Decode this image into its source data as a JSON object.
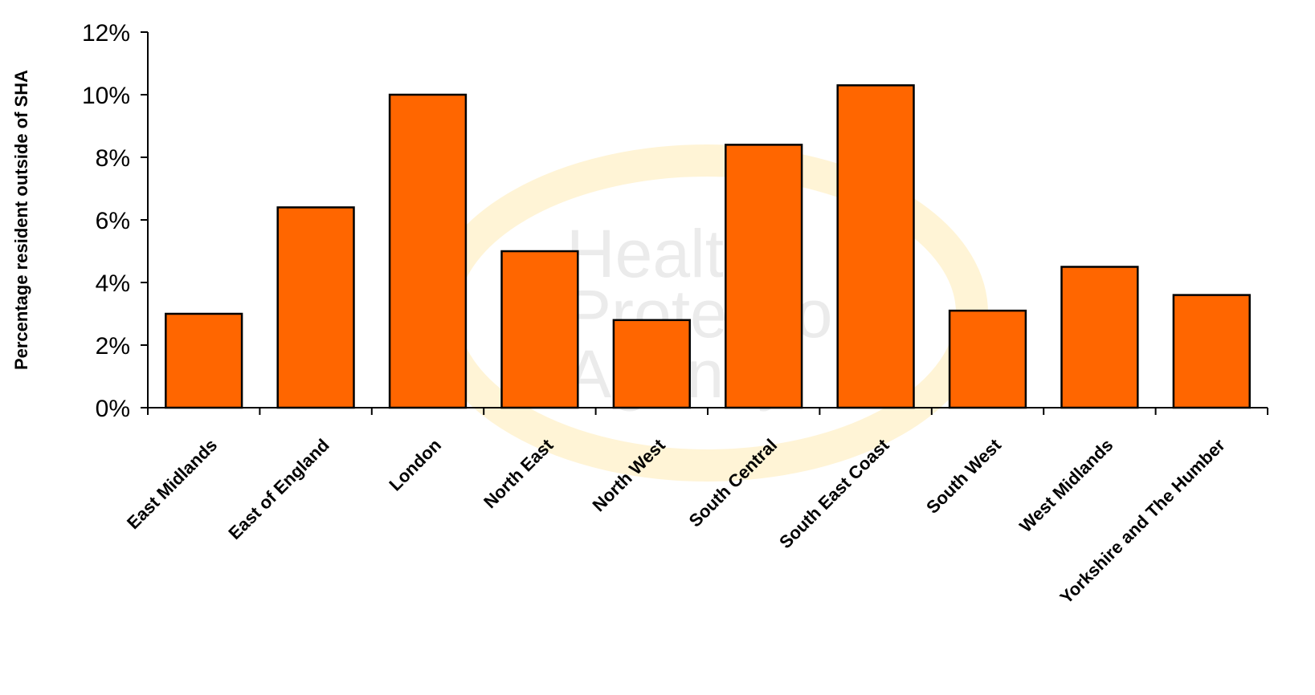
{
  "watermark": {
    "lines": [
      "Health",
      "Protection",
      "Agency"
    ]
  },
  "colors": {
    "bar_fill": "#FF6600",
    "bar_stroke": "#000000",
    "watermark_ring": "#FFD36B"
  },
  "chart_data": {
    "type": "bar",
    "title": "",
    "xlabel": "",
    "ylabel": "Percentage  resident outside of SHA",
    "categories": [
      "East Midlands",
      "East of England",
      "London",
      "North East",
      "North West",
      "South Central",
      "South East Coast",
      "South West",
      "West Midlands",
      "Yorkshire and The Humber"
    ],
    "values": [
      3.0,
      6.4,
      10.0,
      5.0,
      2.8,
      8.4,
      10.3,
      3.1,
      4.5,
      3.6
    ],
    "ylim": [
      0,
      12
    ],
    "yticks": [
      0,
      2,
      4,
      6,
      8,
      10,
      12
    ],
    "ytick_labels": [
      "0%",
      "2%",
      "4%",
      "6%",
      "8%",
      "10%",
      "12%"
    ],
    "grid": false,
    "legend": "none"
  }
}
